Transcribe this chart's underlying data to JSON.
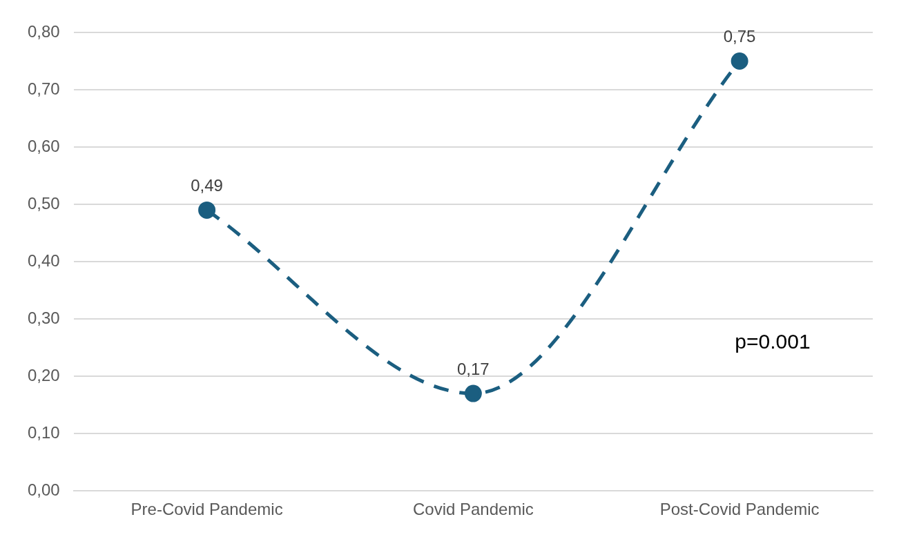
{
  "chart_data": {
    "type": "line",
    "categories": [
      "Pre-Covid Pandemic",
      "Covid Pandemic",
      "Post-Covid Pandemic"
    ],
    "series": [
      {
        "color": "#1b5e80",
        "values": [
          0.49,
          0.17,
          0.75
        ],
        "value_labels": [
          "0,49",
          "0,17",
          "0,75"
        ]
      }
    ],
    "ylim": [
      0,
      0.8
    ],
    "yticks": [
      {
        "value": 0,
        "label": "0,00"
      },
      {
        "value": 0.1,
        "label": "0,10"
      },
      {
        "value": 0.2,
        "label": "0,20"
      },
      {
        "value": 0.3,
        "label": "0,30"
      },
      {
        "value": 0.4,
        "label": "0,40"
      },
      {
        "value": 0.5,
        "label": "0,50"
      },
      {
        "value": 0.6,
        "label": "0,60"
      },
      {
        "value": 0.7,
        "label": "0,70"
      },
      {
        "value": 0.8,
        "label": "0,80"
      }
    ],
    "grid": "y",
    "legend": false,
    "marker": "circle",
    "line_style": "dashed",
    "annotations": [
      "p=0.001"
    ]
  }
}
